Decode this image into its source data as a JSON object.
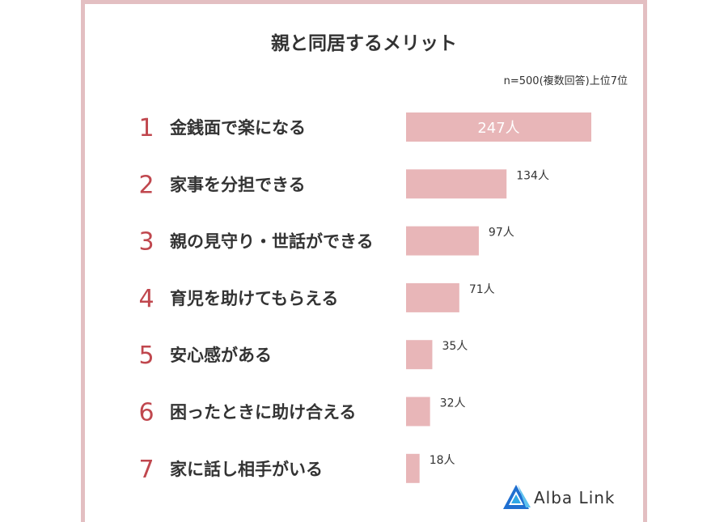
{
  "title": "親と同居するメリット",
  "note": "n=500(複数回答)上位7位",
  "logo": {
    "text": "Alba Link"
  },
  "colors": {
    "bar": "#e8b6b8",
    "rank": "#c0474e",
    "frame": "#e3bfc2",
    "label": "#333333"
  },
  "chart_data": {
    "type": "bar",
    "orientation": "horizontal",
    "ranks": [
      "1",
      "2",
      "3",
      "4",
      "5",
      "6",
      "7"
    ],
    "categories": [
      "金銭面で楽になる",
      "家事を分担できる",
      "親の見守り・世話ができる",
      "育児を助けてもらえる",
      "安心感がある",
      "困ったときに助け合える",
      "家に話し相手がいる"
    ],
    "values": [
      247,
      134,
      97,
      71,
      35,
      32,
      18
    ],
    "value_labels": [
      "247人",
      "134人",
      "97人",
      "71人",
      "35人",
      "32人",
      "18人"
    ],
    "xlim": [
      0,
      247
    ],
    "grid": false,
    "legend": "none"
  }
}
